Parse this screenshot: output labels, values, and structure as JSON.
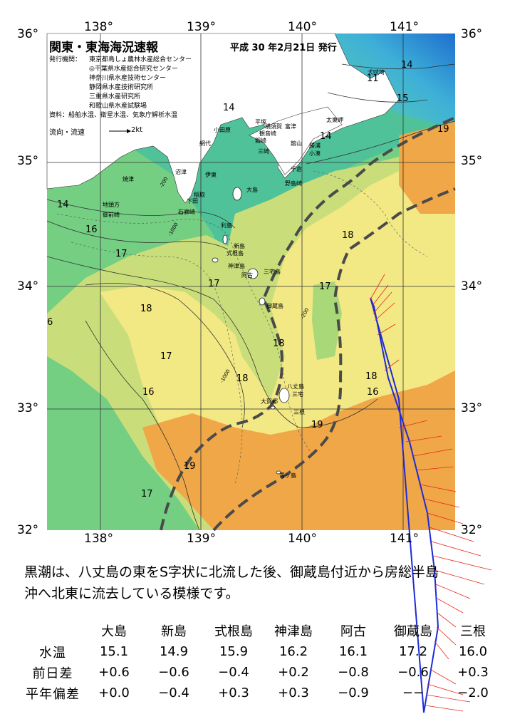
{
  "header": {
    "title": "関東・東海海況速報",
    "date": "平成  30 年2月21日 発行",
    "org_label": "発行機関：",
    "orgs": [
      "東京都島しょ農林水産総合センター",
      "◎千葉県水産総合研究センター",
      "神奈川県水産技術センター",
      "静岡県水産技術研究所",
      "三重県水産研究所",
      "和歌山県水産試験場"
    ],
    "source_label": "資料：",
    "source_text": "船舶水温、衛星水温、気象庁解析水温",
    "legend_label": "流向・流速",
    "legend_unit": "2kt"
  },
  "axes": {
    "lon_labels": [
      "138°",
      "139°",
      "140°",
      "141°"
    ],
    "lat_labels": [
      "36°",
      "35°",
      "34°",
      "33°",
      "32°"
    ]
  },
  "places": [
    "犬吠埼",
    "太東岬",
    "勝浦",
    "小湊",
    "館山",
    "千倉",
    "野島崎",
    "平塚",
    "横須賀",
    "観音崎",
    "剱崎",
    "三崎",
    "小田原",
    "富津",
    "網代",
    "伊東",
    "沼津",
    "稲取",
    "下田",
    "石廊崎",
    "御前崎",
    "焼津",
    "地頭方",
    "大島",
    "利島",
    "新島",
    "式根島",
    "神津島",
    "三宅島",
    "御蔵島",
    "八丈島",
    "青ヶ島",
    "三宅",
    "大賀郷",
    "三根",
    "阿古"
  ],
  "isotherm_labels": [
    "11",
    "14",
    "14",
    "14",
    "14",
    "15",
    "16",
    "16",
    "16",
    "17",
    "17",
    "17",
    "17",
    "17",
    "18",
    "18",
    "18",
    "18",
    "18",
    "19",
    "19",
    "19",
    "6"
  ],
  "depth_labels": [
    "-200",
    "-1000"
  ],
  "description": [
    "黒潮は、八丈島の東をS字状に北流した後、御蔵島付近から房総半島",
    "沖へ北東に流去している模様です。"
  ],
  "table": {
    "columns": [
      "大島",
      "新島",
      "式根島",
      "神津島",
      "阿古",
      "御蔵島",
      "三根"
    ],
    "rows": [
      {
        "label": "水温",
        "values": [
          "15.1",
          "14.9",
          "15.9",
          "16.2",
          "16.1",
          "17.2",
          "16.0"
        ]
      },
      {
        "label": "前日差",
        "values": [
          "+0.6",
          "−0.6",
          "−0.4",
          "+0.2",
          "−0.8",
          "−0.6",
          "+0.3"
        ]
      },
      {
        "label": "平年偏差",
        "values": [
          "+0.0",
          "−0.4",
          "+0.3",
          "+0.3",
          "−0.9",
          "−−",
          "−2.0"
        ]
      }
    ]
  },
  "colors": {
    "land": "#ffffff",
    "cold": "#2e8fd6",
    "mid": "#55c68e",
    "warm": "#f3e88a",
    "hot": "#ef9a3a",
    "kuroshio": "#4a4a4a",
    "track": "#1d2bd8",
    "vectors": "#e8281d"
  }
}
